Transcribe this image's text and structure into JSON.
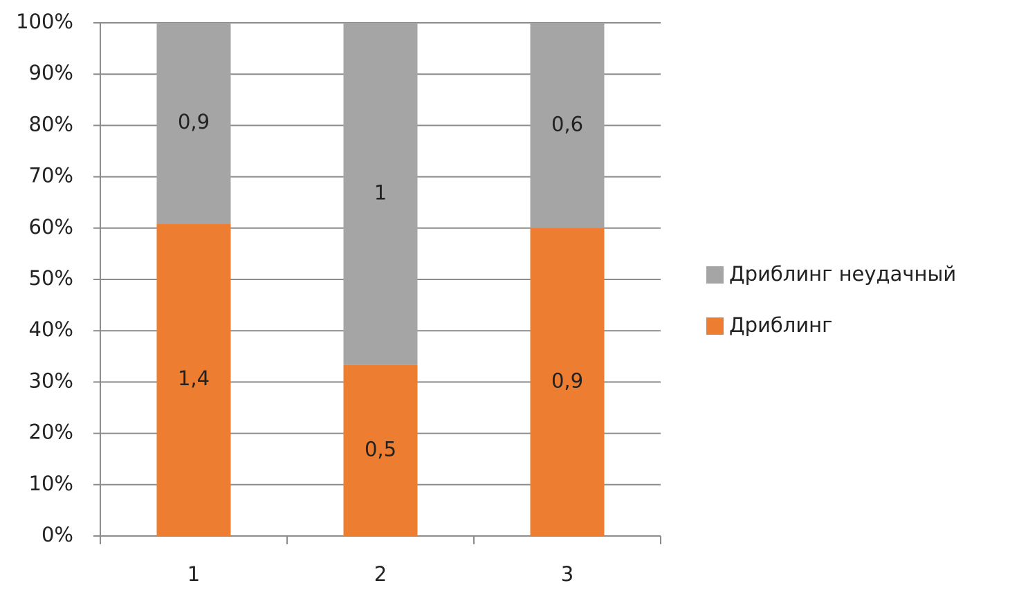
{
  "chart_data": {
    "type": "bar",
    "stacking": "percent",
    "categories": [
      "1",
      "2",
      "3"
    ],
    "series": [
      {
        "name": "Дриблинг",
        "color": "#ed7d31",
        "values": [
          1.4,
          0.5,
          0.9
        ],
        "value_labels": [
          "1,4",
          "0,5",
          "0,9"
        ]
      },
      {
        "name": "Дриблинг неудачный",
        "color": "#a5a5a5",
        "values": [
          0.9,
          1,
          0.6
        ],
        "value_labels": [
          "0,9",
          "1",
          "0,6"
        ]
      }
    ],
    "ylim": [
      0,
      100
    ],
    "yticks": [
      {
        "value": 0,
        "label": "0%"
      },
      {
        "value": 10,
        "label": "10%"
      },
      {
        "value": 20,
        "label": "20%"
      },
      {
        "value": 30,
        "label": "30%"
      },
      {
        "value": 40,
        "label": "40%"
      },
      {
        "value": 50,
        "label": "50%"
      },
      {
        "value": 60,
        "label": "60%"
      },
      {
        "value": 70,
        "label": "70%"
      },
      {
        "value": 80,
        "label": "80%"
      },
      {
        "value": 90,
        "label": "90%"
      },
      {
        "value": 100,
        "label": "100%"
      }
    ],
    "grid": true,
    "legend": "right"
  }
}
